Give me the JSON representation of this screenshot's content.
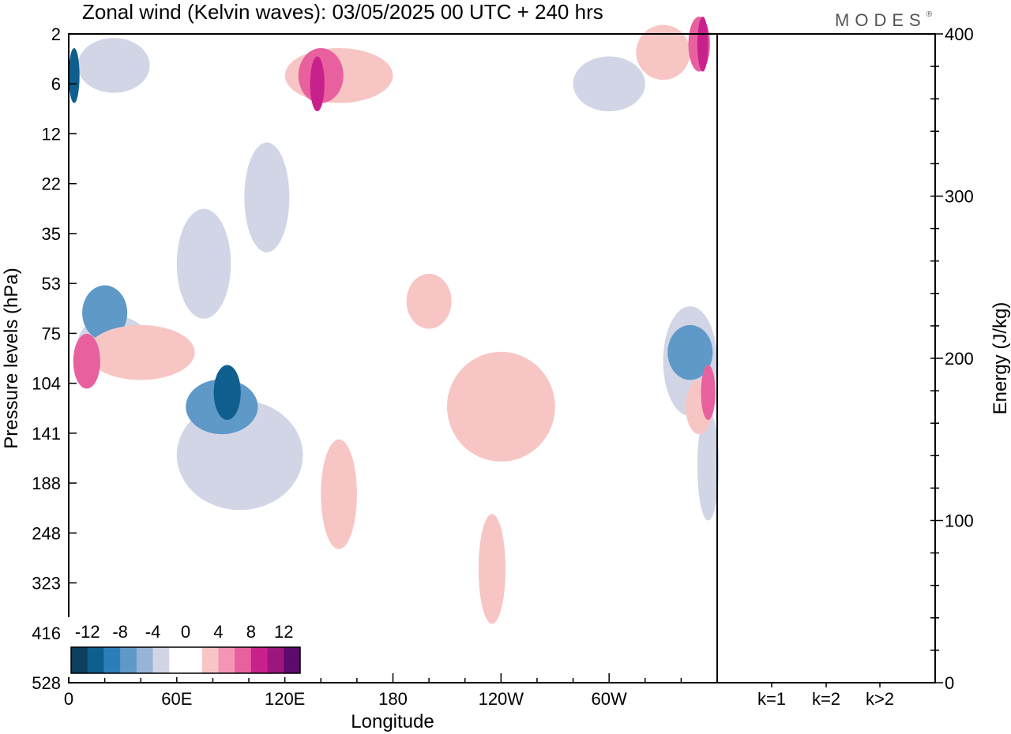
{
  "title": "Zonal wind (Kelvin waves):  03/05/2025  00 UTC  + 240 hrs",
  "brand": "MODES",
  "brand_mark": "®",
  "colors": {
    "neg_darkest": "#0d3f5e",
    "neg_1": "#0f5e8e",
    "neg_2": "#2a7fb8",
    "neg_3": "#5e99c7",
    "neg_4": "#98b3d6",
    "neg_5": "#d2d5e6",
    "zero": "#ffffff",
    "pos_1": "#f7c6c4",
    "pos_2": "#f595b5",
    "pos_3": "#e9609f",
    "pos_4": "#c9218c",
    "pos_5": "#9c167e",
    "pos_darkest": "#5c0a6b"
  },
  "chart_data": [
    {
      "type": "heatmap",
      "title": "Zonal wind (Kelvin waves):  03/05/2025  00 UTC  + 240 hrs",
      "xlabel": "Longitude",
      "ylabel": "Pressure levels (hPa)",
      "x_ticks": [
        "0",
        "60E",
        "120E",
        "180",
        "120W",
        "60W"
      ],
      "x_tick_degrees": [
        0,
        60,
        120,
        180,
        240,
        300
      ],
      "xlim": [
        0,
        360
      ],
      "y_ticks": [
        "2",
        "6",
        "12",
        "22",
        "35",
        "53",
        "75",
        "104",
        "141",
        "188",
        "248",
        "323",
        "416",
        "528"
      ],
      "y_scale": "log-pressure",
      "colorbar": {
        "labels": [
          "-12",
          "-8",
          "-4",
          "0",
          "4",
          "8",
          "12"
        ],
        "bounds": [
          -14,
          -12,
          -10,
          -8,
          -6,
          -4,
          -2,
          2,
          4,
          6,
          8,
          10,
          12,
          14
        ],
        "location": "bottom-left"
      },
      "features": [
        {
          "level": -2,
          "blobs": [
            {
              "lon": 25,
              "p": 80,
              "lon_w": 40,
              "p_w": 1
            },
            {
              "lon": 75,
              "p": 45,
              "lon_w": 30,
              "p_w": 2
            },
            {
              "lon": 110,
              "p": 25,
              "lon_w": 25,
              "p_w": 2
            },
            {
              "lon": 95,
              "p": 160,
              "lon_w": 70,
              "p_w": 2
            },
            {
              "lon": 345,
              "p": 90,
              "lon_w": 30,
              "p_w": 2
            },
            {
              "lon": 355,
              "p": 170,
              "lon_w": 12,
              "p_w": 2
            },
            {
              "lon": 300,
              "p": 6,
              "lon_w": 40,
              "p_w": 1
            },
            {
              "lon": 25,
              "p": 4,
              "lon_w": 40,
              "p_w": 1
            }
          ]
        },
        {
          "level": -6,
          "blobs": [
            {
              "lon": 85,
              "p": 120,
              "lon_w": 40,
              "p_w": 1
            },
            {
              "lon": 20,
              "p": 65,
              "lon_w": 25,
              "p_w": 1
            },
            {
              "lon": 345,
              "p": 85,
              "lon_w": 25,
              "p_w": 1
            }
          ]
        },
        {
          "level": -10,
          "blobs": [
            {
              "lon": 88,
              "p": 110,
              "lon_w": 15,
              "p_w": 1
            },
            {
              "lon": 3,
              "p": 5,
              "lon_w": 6,
              "p_w": 1
            }
          ]
        },
        {
          "level": 2,
          "blobs": [
            {
              "lon": 40,
              "p": 85,
              "lon_w": 60,
              "p_w": 1
            },
            {
              "lon": 150,
              "p": 5,
              "lon_w": 60,
              "p_w": 1
            },
            {
              "lon": 240,
              "p": 120,
              "lon_w": 60,
              "p_w": 2
            },
            {
              "lon": 150,
              "p": 200,
              "lon_w": 20,
              "p_w": 2
            },
            {
              "lon": 235,
              "p": 300,
              "lon_w": 15,
              "p_w": 2
            },
            {
              "lon": 200,
              "p": 60,
              "lon_w": 25,
              "p_w": 1
            },
            {
              "lon": 350,
              "p": 120,
              "lon_w": 15,
              "p_w": 1
            },
            {
              "lon": 330,
              "p": 3,
              "lon_w": 30,
              "p_w": 1
            }
          ]
        },
        {
          "level": 6,
          "blobs": [
            {
              "lon": 10,
              "p": 90,
              "lon_w": 15,
              "p_w": 1
            },
            {
              "lon": 140,
              "p": 5,
              "lon_w": 25,
              "p_w": 1
            },
            {
              "lon": 355,
              "p": 110,
              "lon_w": 8,
              "p_w": 1
            },
            {
              "lon": 350,
              "p": 2.5,
              "lon_w": 12,
              "p_w": 1
            }
          ]
        },
        {
          "level": 8,
          "blobs": [
            {
              "lon": 138,
              "p": 6,
              "lon_w": 8,
              "p_w": 1
            },
            {
              "lon": 352,
              "p": 2.5,
              "lon_w": 6,
              "p_w": 1
            }
          ]
        }
      ]
    },
    {
      "type": "bar",
      "ylabel": "Energy (J/kg)",
      "categories": [
        "k=1",
        "k=2",
        "k>2"
      ],
      "values": [
        0.5,
        0.2,
        0.2
      ],
      "ylim": [
        0,
        400
      ],
      "y_ticks": [
        "0",
        "100",
        "200",
        "300",
        "400"
      ],
      "y_tick_values": [
        0,
        100,
        200,
        300,
        400
      ],
      "y_minor_step": 20
    }
  ]
}
